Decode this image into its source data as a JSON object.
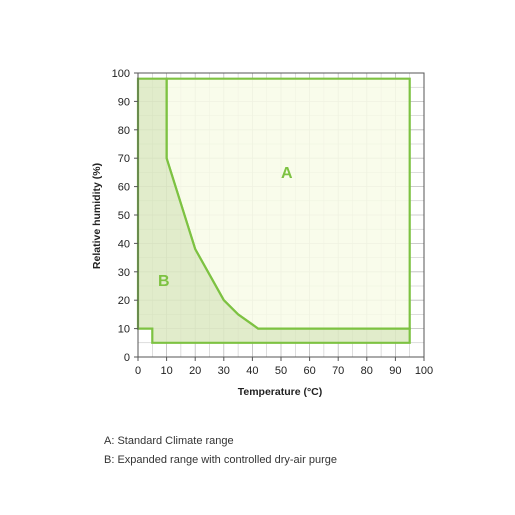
{
  "chart_data": {
    "type": "area",
    "xlabel": "Temperature (°C)",
    "ylabel": "Relative humidity (%)",
    "xlim": [
      0,
      100
    ],
    "ylim": [
      0,
      100
    ],
    "x_ticks": [
      0,
      10,
      20,
      30,
      40,
      50,
      60,
      70,
      80,
      90,
      100
    ],
    "y_ticks": [
      0,
      10,
      20,
      30,
      40,
      50,
      60,
      70,
      80,
      90,
      100
    ],
    "grid": true,
    "regions": [
      {
        "label": "A",
        "x": [
          10,
          10,
          20,
          30,
          35,
          42,
          95,
          95,
          10
        ],
        "y": [
          98,
          70,
          38,
          20,
          15,
          10,
          10,
          98,
          98
        ],
        "fill": "#f8fbe8",
        "stroke": "#7dc242"
      },
      {
        "label": "B",
        "x": [
          0,
          0,
          5,
          5,
          95,
          95,
          42,
          35,
          30,
          20,
          10,
          10,
          0
        ],
        "y": [
          98,
          10,
          10,
          5,
          5,
          10,
          10,
          15,
          20,
          38,
          70,
          98,
          98
        ],
        "fill": "#dce9c2",
        "stroke": "#7dc242"
      }
    ],
    "region_label_positions": [
      {
        "label": "A",
        "x": 52,
        "y": 63
      },
      {
        "label": "B",
        "x": 9,
        "y": 25
      }
    ],
    "colors": {
      "region_label": "#7dc242",
      "grid": "#bbbbbb",
      "axis": "#555555"
    }
  },
  "legend": {
    "a": "A: Standard Climate range",
    "b": "B: Expanded range with controlled dry-air purge"
  }
}
